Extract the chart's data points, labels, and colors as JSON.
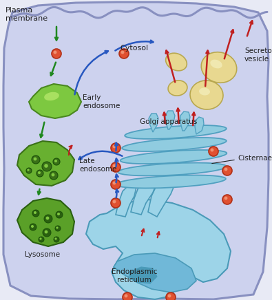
{
  "fig_width": 3.95,
  "fig_height": 4.36,
  "bg_color": "#e8eaf5",
  "cell_bg": "#cdd2ee",
  "plasma_membrane_color": "#8890c0",
  "er_color_light": "#9dd4e8",
  "er_color_mid": "#70b8d8",
  "er_color_dark": "#4a9ab8",
  "golgi_color": "#90cce0",
  "golgi_dark": "#50a0c0",
  "early_endo_color": "#7dc840",
  "early_endo_dark": "#4a8820",
  "late_endo_color": "#68b030",
  "late_endo_dark": "#3a7018",
  "lysosome_color": "#5aa028",
  "lysosome_dark": "#2a6010",
  "secretory_color": "#e8d890",
  "secretory_outline": "#b8a850",
  "vesicle_fill": "#e05030",
  "vesicle_outline": "#b03018",
  "vesicle_hilight": "#f09070",
  "arrow_blue": "#2858c0",
  "arrow_green": "#208820",
  "arrow_red": "#c02020",
  "text_color": "#222222",
  "labels": {
    "plasma_membrane": "Plasma\nmembrane",
    "cytosol": "Cytosol",
    "early_endosome": "Early\nendosome",
    "late_endosome": "Late\nendosome",
    "lysosome": "Lysosome",
    "golgi": "Golgi apparatus",
    "cisternae": "Cisternae",
    "secretory": "Secretory\nvesicle",
    "er": "Endoplasmic\nreticulum"
  }
}
